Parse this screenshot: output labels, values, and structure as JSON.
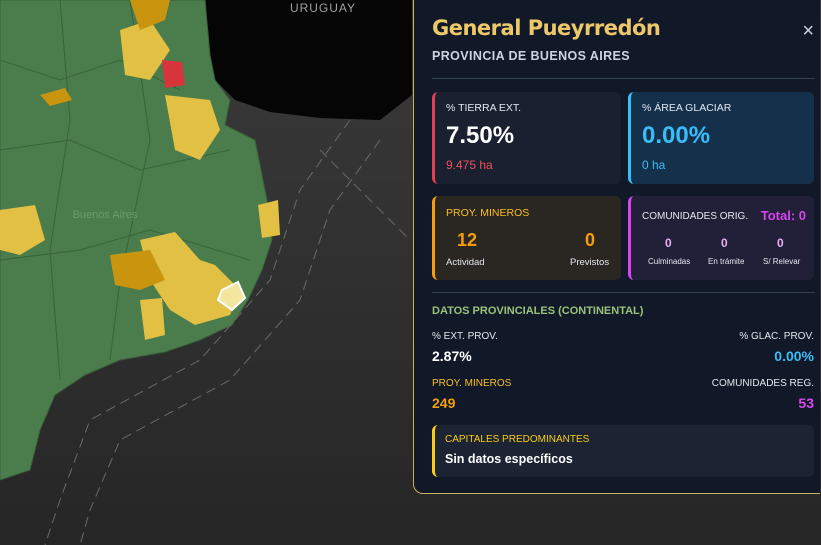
{
  "map": {
    "labels": [
      "URUGUAY",
      "Buenos Aires"
    ]
  },
  "panel": {
    "title": "General Pueyrredón",
    "subtitle": "PROVINCIA DE BUENOS AIRES",
    "close": "×",
    "tierra": {
      "label": "% TIERRA EXT.",
      "value": "7.50%",
      "sub": "9.475 ha"
    },
    "glaciar": {
      "label": "% ÁREA GLACIAR",
      "value": "0.00%",
      "sub": "0 ha"
    },
    "mineros": {
      "label": "PROY. MINEROS",
      "items": [
        {
          "value": "12",
          "label": "Actividad"
        },
        {
          "value": "0",
          "label": "Previstos"
        }
      ]
    },
    "comunidades": {
      "label": "COMUNIDADES ORIG.",
      "total": "Total: 0",
      "items": [
        {
          "value": "0",
          "label": "Culminadas"
        },
        {
          "value": "0",
          "label": "En trámite"
        },
        {
          "value": "0",
          "label": "S/ Relevar"
        }
      ]
    },
    "provincial": {
      "heading": "DATOS PROVINCIALES (CONTINENTAL)",
      "stats": [
        {
          "label": "% EXT. PROV.",
          "value": "2.87%"
        },
        {
          "label": "% GLAC. PROV.",
          "value": "0.00%"
        },
        {
          "label": "PROY. MINEROS",
          "value": "249"
        },
        {
          "label": "COMUNIDADES REG.",
          "value": "53"
        }
      ]
    },
    "capitales": {
      "label": "CAPITALES PREDOMINANTES",
      "value": "Sin datos específicos"
    }
  }
}
